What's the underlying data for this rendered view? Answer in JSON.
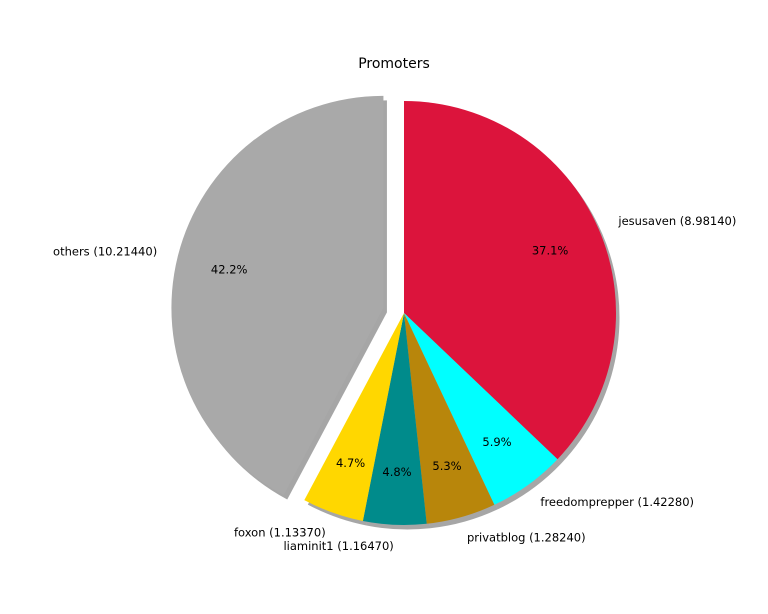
{
  "chart_data": {
    "type": "pie",
    "title": "Promoters",
    "start_angle_deg": 90,
    "direction": "clockwise",
    "shadow": true,
    "slices": [
      {
        "label": "jesusaven (8.98140)",
        "name": "jesusaven",
        "value": 8.9814,
        "percent_label": "37.1%",
        "color": "#DC143C",
        "explode": 0.0
      },
      {
        "label": "freedomprepper (1.42280)",
        "name": "freedomprepper",
        "value": 1.4228,
        "percent_label": "5.9%",
        "color": "#00FFFF",
        "explode": 0.0
      },
      {
        "label": "privatblog (1.28240)",
        "name": "privatblog",
        "value": 1.2824,
        "percent_label": "5.3%",
        "color": "#B8860B",
        "explode": 0.0
      },
      {
        "label": "liaminit1 (1.16470)",
        "name": "liaminit1",
        "value": 1.1647,
        "percent_label": "4.8%",
        "color": "#008B8B",
        "explode": 0.0
      },
      {
        "label": "foxon (1.13370)",
        "name": "foxon",
        "value": 1.1337,
        "percent_label": "4.7%",
        "color": "#FFD700",
        "explode": 0.0
      },
      {
        "label": "others (10.21440)",
        "name": "others",
        "value": 10.2144,
        "percent_label": "42.2%",
        "color": "#A9A9A9",
        "explode": 0.1
      }
    ]
  }
}
